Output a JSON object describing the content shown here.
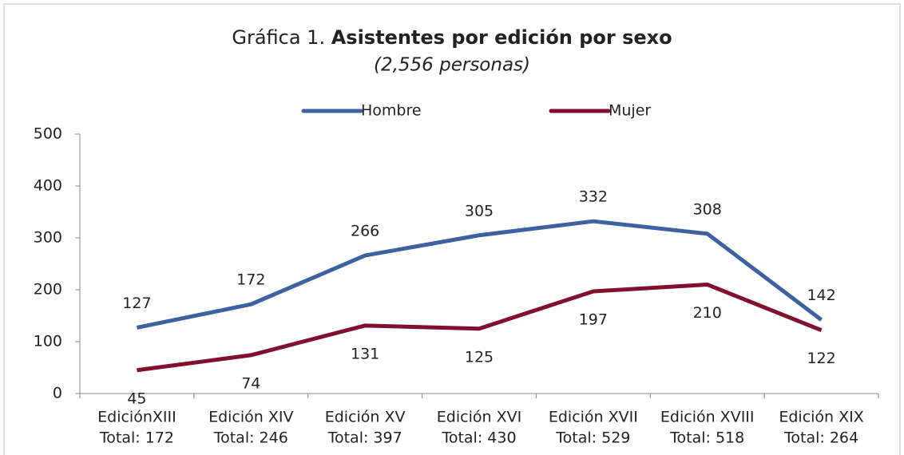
{
  "chart_data": {
    "type": "line",
    "title_prefix": "Gráfica 1.",
    "title": "Asistentes por edición por sexo",
    "subtitle": "(2,556 personas)",
    "categories": [
      [
        "EdiciónXIII",
        "Total: 172"
      ],
      [
        "Edición  XIV",
        "Total: 246"
      ],
      [
        "Edición XV",
        "Total: 397"
      ],
      [
        "Edición  XVI",
        "Total: 430"
      ],
      [
        "Edición XVII",
        "Total: 529"
      ],
      [
        "Edición XVIII",
        "Total: 518"
      ],
      [
        "Edición XIX",
        "Total: 264"
      ]
    ],
    "series": [
      {
        "name": "Hombre",
        "color": "#3d62a0",
        "values": [
          127,
          172,
          266,
          305,
          332,
          308,
          142
        ]
      },
      {
        "name": "Mujer",
        "color": "#800f30",
        "values": [
          45,
          74,
          131,
          125,
          197,
          210,
          122
        ]
      }
    ],
    "ylim": [
      0,
      500
    ],
    "yticks": [
      0,
      100,
      200,
      300,
      400,
      500
    ],
    "legend": "top",
    "grid": false
  }
}
